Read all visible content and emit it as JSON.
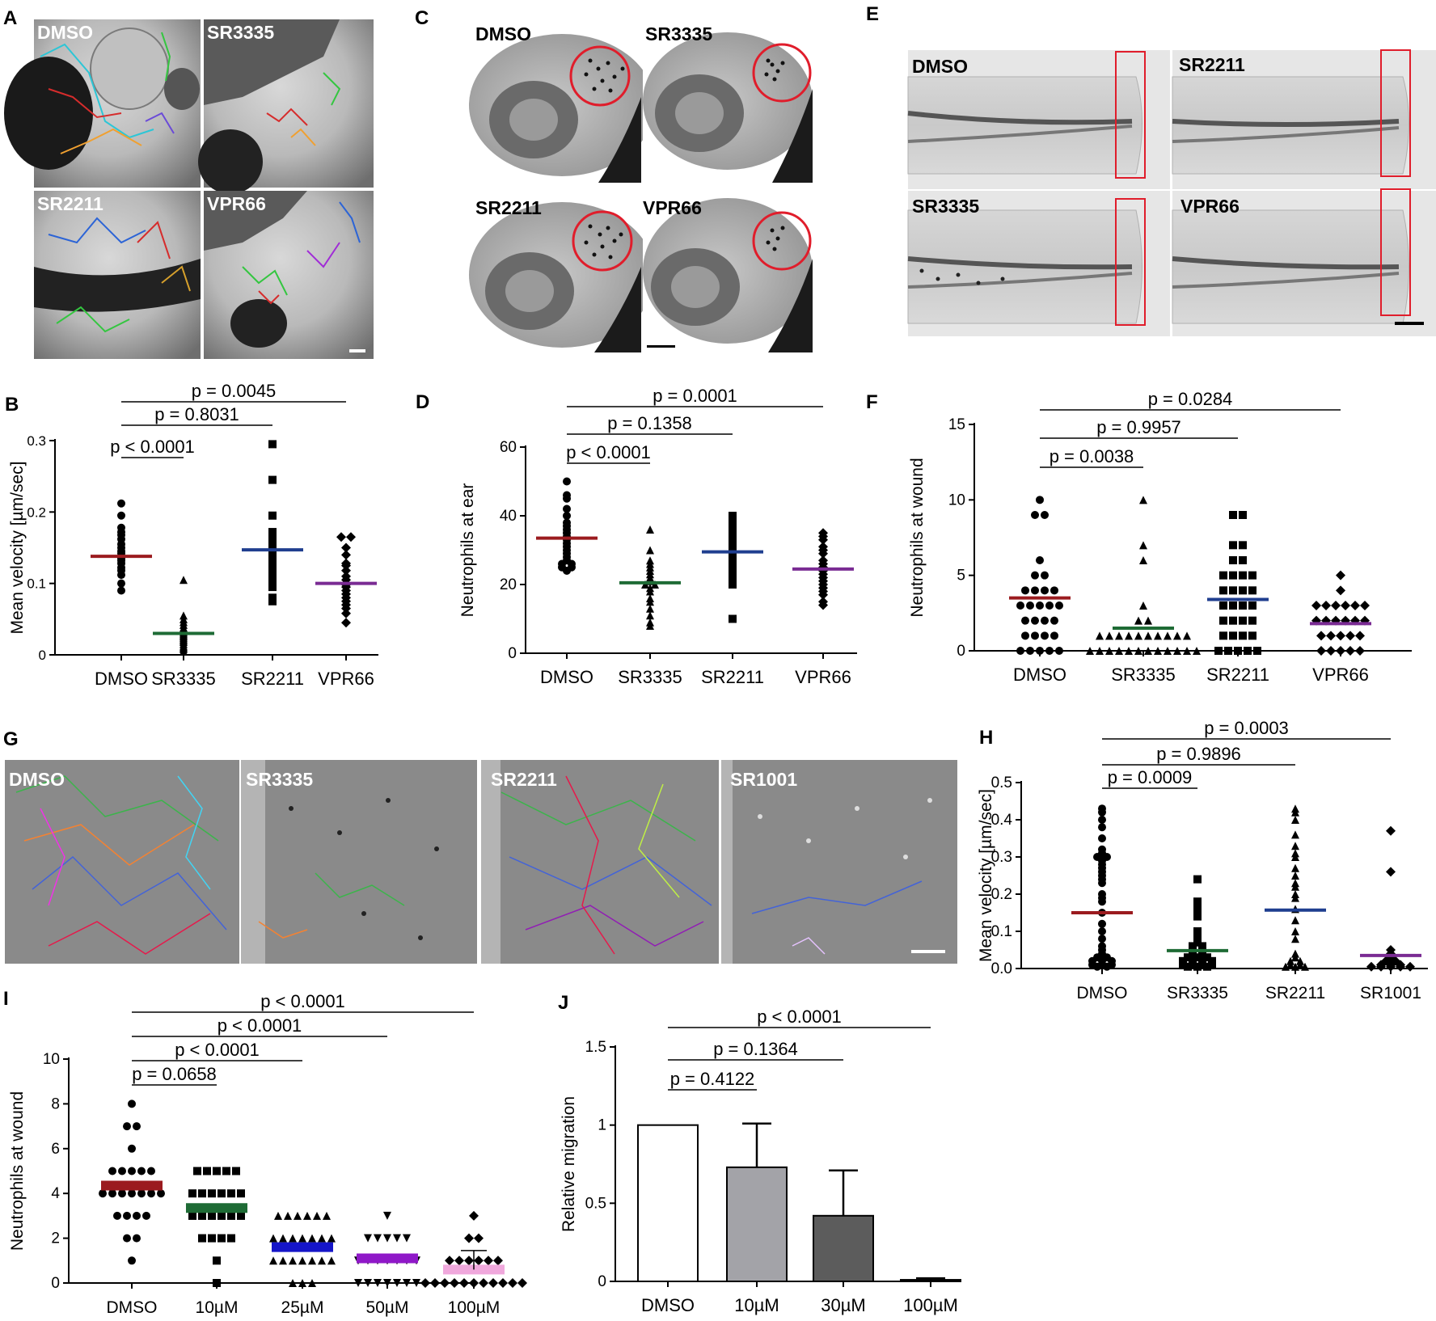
{
  "colors": {
    "dmso": "#9b1b1f",
    "sr3335": "#1e6b35",
    "sr2211": "#1f3e8f",
    "vpr66": "#7a2b93",
    "sr1001": "#7a2b93",
    "i_25": "#1515c8",
    "i_50": "#8f18c8",
    "i_100": "#f0a8dc",
    "j_dmso_fill": "#ffffff",
    "j_10": "#a3a3a8",
    "j_30": "#5c5c5c",
    "j_100": "#333333",
    "roi_red": "#e01d2b"
  },
  "panels": {
    "A": {
      "letter": "A",
      "images": [
        {
          "label": "DMSO",
          "name": "image-a-dmso"
        },
        {
          "label": "SR3335",
          "name": "image-a-sr3335"
        },
        {
          "label": "SR2211",
          "name": "image-a-sr2211"
        },
        {
          "label": "VPR66",
          "name": "image-a-vpr66"
        }
      ]
    },
    "C": {
      "letter": "C",
      "images": [
        {
          "label": "DMSO",
          "name": "image-c-dmso"
        },
        {
          "label": "SR3335",
          "name": "image-c-sr3335"
        },
        {
          "label": "SR2211",
          "name": "image-c-sr2211"
        },
        {
          "label": "VPR66",
          "name": "image-c-vpr66"
        }
      ]
    },
    "E": {
      "letter": "E",
      "images": [
        {
          "label": "DMSO",
          "name": "image-e-dmso"
        },
        {
          "label": "SR2211",
          "name": "image-e-sr2211"
        },
        {
          "label": "SR3335",
          "name": "image-e-sr3335"
        },
        {
          "label": "VPR66",
          "name": "image-e-vpr66"
        }
      ]
    },
    "G": {
      "letter": "G",
      "images": [
        {
          "label": "DMSO",
          "name": "image-g-dmso"
        },
        {
          "label": "SR3335",
          "name": "image-g-sr3335"
        },
        {
          "label": "SR2211",
          "name": "image-g-sr2211"
        },
        {
          "label": "SR1001",
          "name": "image-g-sr1001"
        }
      ]
    }
  },
  "chart_data": [
    {
      "id": "B",
      "letter": "B",
      "type": "scatter",
      "ylabel": "Mean velocity [µm/sec]",
      "ylim": [
        0,
        0.3
      ],
      "yticks": [
        "0",
        "0.1",
        "0.2",
        "0.3"
      ],
      "categories": [
        "DMSO",
        "SR3335",
        "SR2211",
        "VPR66"
      ],
      "groups": [
        {
          "name": "DMSO",
          "marker": "circle",
          "mean": 0.138,
          "color": "dmso",
          "values": [
            0.212,
            0.195,
            0.178,
            0.172,
            0.168,
            0.162,
            0.155,
            0.15,
            0.145,
            0.142,
            0.138,
            0.135,
            0.132,
            0.128,
            0.122,
            0.118,
            0.112,
            0.1,
            0.09
          ]
        },
        {
          "name": "SR3335",
          "marker": "triangle",
          "mean": 0.03,
          "color": "sr3335",
          "values": [
            0.105,
            0.055,
            0.05,
            0.046,
            0.042,
            0.038,
            0.035,
            0.032,
            0.03,
            0.028,
            0.026,
            0.024,
            0.022,
            0.02,
            0.018,
            0.015,
            0.012,
            0.01,
            0.008,
            0.005
          ]
        },
        {
          "name": "SR2211",
          "marker": "square",
          "mean": 0.147,
          "color": "sr2211",
          "values": [
            0.295,
            0.245,
            0.195,
            0.172,
            0.17,
            0.168,
            0.162,
            0.158,
            0.155,
            0.148,
            0.145,
            0.14,
            0.135,
            0.128,
            0.12,
            0.115,
            0.11,
            0.1,
            0.095,
            0.08,
            0.075
          ]
        },
        {
          "name": "VPR66",
          "marker": "diamond",
          "mean": 0.1,
          "color": "vpr66",
          "values": [
            0.165,
            0.165,
            0.15,
            0.14,
            0.128,
            0.125,
            0.118,
            0.11,
            0.105,
            0.1,
            0.098,
            0.095,
            0.09,
            0.085,
            0.08,
            0.075,
            0.07,
            0.065,
            0.058,
            0.045
          ]
        }
      ],
      "comparisons": [
        {
          "label": "p < 0.0001",
          "from": 0,
          "to": 1
        },
        {
          "label": "p = 0.8031",
          "from": 0,
          "to": 2
        },
        {
          "label": "p = 0.0045",
          "from": 0,
          "to": 3
        }
      ]
    },
    {
      "id": "D",
      "letter": "D",
      "type": "scatter",
      "ylabel": "Neutrophils at ear",
      "ylim": [
        0,
        60
      ],
      "yticks": [
        "0",
        "20",
        "40",
        "60"
      ],
      "categories": [
        "DMSO",
        "SR3335",
        "SR2211",
        "VPR66"
      ],
      "groups": [
        {
          "name": "DMSO",
          "marker": "circle",
          "mean": 33.5,
          "color": "dmso",
          "values": [
            50,
            46,
            45,
            42,
            40,
            38,
            37,
            36,
            35,
            34,
            33,
            32,
            31,
            30,
            29,
            28,
            27,
            26,
            26,
            25,
            25,
            24
          ]
        },
        {
          "name": "SR3335",
          "marker": "triangle",
          "mean": 20.5,
          "color": "sr3335",
          "values": [
            36,
            30,
            27,
            26,
            25,
            24,
            23,
            22,
            21,
            20,
            20,
            19,
            18,
            16,
            15,
            13,
            11,
            9,
            8
          ]
        },
        {
          "name": "SR2211",
          "marker": "square",
          "mean": 29.5,
          "color": "sr2211",
          "values": [
            40,
            39,
            38,
            37,
            36,
            35,
            34,
            33,
            32,
            31,
            30,
            29,
            28,
            27,
            26,
            25,
            24,
            22,
            20,
            10
          ]
        },
        {
          "name": "VPR66",
          "marker": "diamond",
          "mean": 24.5,
          "color": "vpr66",
          "values": [
            35,
            34,
            33,
            31,
            30,
            29,
            27,
            26,
            25,
            24,
            23,
            22,
            21,
            20,
            19,
            18,
            17,
            15,
            14
          ]
        }
      ],
      "comparisons": [
        {
          "label": "p < 0.0001",
          "from": 0,
          "to": 1
        },
        {
          "label": "p = 0.1358",
          "from": 0,
          "to": 2
        },
        {
          "label": "p = 0.0001",
          "from": 0,
          "to": 3
        }
      ]
    },
    {
      "id": "F",
      "letter": "F",
      "type": "scatter",
      "ylabel": "Neutrophils at wound",
      "ylim": [
        0,
        15
      ],
      "yticks": [
        "0",
        "5",
        "10",
        "15"
      ],
      "categories": [
        "DMSO",
        "SR3335",
        "SR2211",
        "VPR66"
      ],
      "groups": [
        {
          "name": "DMSO",
          "marker": "circle",
          "mean": 3.5,
          "color": "dmso",
          "values": [
            10,
            9,
            9,
            6,
            5,
            5,
            4,
            4,
            4,
            4,
            3,
            3,
            3,
            3,
            3,
            2,
            2,
            2,
            2,
            1,
            1,
            1,
            1,
            0,
            0,
            0,
            0,
            0
          ]
        },
        {
          "name": "SR3335",
          "marker": "triangle",
          "mean": 1.5,
          "color": "sr3335",
          "values": [
            10,
            7,
            6,
            3,
            2,
            2,
            1,
            1,
            1,
            1,
            1,
            1,
            1,
            1,
            1,
            1,
            0,
            0,
            0,
            0,
            0,
            0,
            0,
            0,
            0,
            0,
            0,
            0
          ]
        },
        {
          "name": "SR2211",
          "marker": "square",
          "mean": 3.4,
          "color": "sr2211",
          "values": [
            9,
            9,
            7,
            7,
            6,
            6,
            5,
            5,
            5,
            5,
            4,
            4,
            4,
            4,
            3,
            3,
            3,
            3,
            2,
            2,
            2,
            2,
            1,
            1,
            1,
            1,
            0,
            0,
            0,
            0,
            0
          ]
        },
        {
          "name": "VPR66",
          "marker": "diamond",
          "mean": 1.8,
          "color": "vpr66",
          "values": [
            5,
            4,
            3,
            3,
            3,
            3,
            3,
            3,
            2,
            2,
            2,
            2,
            2,
            2,
            1,
            1,
            1,
            1,
            1,
            0,
            0,
            0,
            0,
            0
          ]
        }
      ],
      "comparisons": [
        {
          "label": "p = 0.0038",
          "from": 0,
          "to": 1
        },
        {
          "label": "p = 0.9957",
          "from": 0,
          "to": 2
        },
        {
          "label": "p = 0.0284",
          "from": 0,
          "to": 3
        }
      ]
    },
    {
      "id": "H",
      "letter": "H",
      "type": "scatter",
      "ylabel": "Mean velocity [µm/sec]",
      "ylim": [
        0,
        0.5
      ],
      "yticks": [
        "0.0",
        "0.1",
        "0.2",
        "0.3",
        "0.4",
        "0.5"
      ],
      "categories": [
        "DMSO",
        "SR3335",
        "SR2211",
        "SR1001"
      ],
      "groups": [
        {
          "name": "DMSO",
          "marker": "circle",
          "mean": 0.15,
          "color": "dmso",
          "values": [
            0.43,
            0.42,
            0.4,
            0.38,
            0.35,
            0.32,
            0.31,
            0.3,
            0.3,
            0.29,
            0.28,
            0.27,
            0.26,
            0.25,
            0.24,
            0.23,
            0.2,
            0.19,
            0.18,
            0.15,
            0.12,
            0.1,
            0.08,
            0.06,
            0.05,
            0.04,
            0.03,
            0.03,
            0.02,
            0.02,
            0.02,
            0.01,
            0.01,
            0.01,
            0.005,
            0.005
          ]
        },
        {
          "name": "SR3335",
          "marker": "square",
          "mean": 0.048,
          "color": "sr3335",
          "values": [
            0.24,
            0.18,
            0.16,
            0.14,
            0.1,
            0.09,
            0.08,
            0.07,
            0.06,
            0.06,
            0.05,
            0.05,
            0.04,
            0.04,
            0.03,
            0.03,
            0.03,
            0.02,
            0.02,
            0.02,
            0.02,
            0.01,
            0.01,
            0.01,
            0.01,
            0.005,
            0.005,
            0.005
          ]
        },
        {
          "name": "SR2211",
          "marker": "triangle",
          "mean": 0.157,
          "color": "sr2211",
          "values": [
            0.43,
            0.42,
            0.4,
            0.36,
            0.33,
            0.31,
            0.3,
            0.27,
            0.25,
            0.23,
            0.22,
            0.2,
            0.19,
            0.16,
            0.13,
            0.1,
            0.08,
            0.04,
            0.03,
            0.02,
            0.02,
            0.01,
            0.01,
            0.005,
            0.005,
            0.005
          ]
        },
        {
          "name": "SR1001",
          "marker": "diamond",
          "mean": 0.035,
          "color": "sr1001",
          "values": [
            0.37,
            0.26,
            0.05,
            0.04,
            0.03,
            0.02,
            0.02,
            0.015,
            0.01,
            0.01,
            0.01,
            0.005,
            0.005,
            0.005,
            0.005,
            0.005
          ]
        }
      ],
      "comparisons": [
        {
          "label": "p = 0.0009",
          "from": 0,
          "to": 1
        },
        {
          "label": "p = 0.9896",
          "from": 0,
          "to": 2
        },
        {
          "label": "p = 0.0003",
          "from": 0,
          "to": 3
        }
      ]
    },
    {
      "id": "I",
      "letter": "I",
      "type": "scatter",
      "ylabel": "Neutrophils at wound",
      "ylim": [
        0,
        10
      ],
      "yticks": [
        "0",
        "2",
        "4",
        "6",
        "8",
        "10"
      ],
      "categories": [
        "DMSO",
        "10µM",
        "25µM",
        "50µM",
        "100µM"
      ],
      "groups": [
        {
          "name": "DMSO",
          "marker": "circle",
          "mean": 4.35,
          "color": "dmso",
          "values": [
            8,
            7,
            7,
            6,
            5,
            5,
            5,
            5,
            5,
            4,
            4,
            4,
            4,
            4,
            4,
            4,
            3,
            3,
            3,
            3,
            2,
            2,
            1
          ]
        },
        {
          "name": "10µM",
          "marker": "square",
          "mean": 3.35,
          "color": "sr3335",
          "values": [
            5,
            5,
            5,
            5,
            5,
            4,
            4,
            4,
            4,
            4,
            4,
            3,
            3,
            3,
            3,
            3,
            3,
            2,
            2,
            2,
            2,
            1,
            0
          ]
        },
        {
          "name": "25µM",
          "marker": "triangle",
          "mean": 1.6,
          "color": "i_25",
          "values": [
            3,
            3,
            3,
            3,
            3,
            3,
            2,
            2,
            2,
            2,
            2,
            2,
            2,
            1,
            1,
            1,
            1,
            1,
            1,
            1,
            0,
            0,
            0
          ]
        },
        {
          "name": "50µM",
          "marker": "invtriangle",
          "mean": 1.1,
          "color": "i_50",
          "values": [
            3,
            2,
            2,
            2,
            2,
            2,
            1,
            1,
            1,
            1,
            1,
            1,
            1,
            0,
            0,
            0,
            0,
            0,
            0,
            0
          ]
        },
        {
          "name": "100µM",
          "marker": "diamond",
          "mean": 0.6,
          "color": "i_100",
          "sem": 0.85,
          "values": [
            3,
            2,
            2,
            1,
            1,
            1,
            1,
            1,
            1,
            0,
            0,
            0,
            0,
            0,
            0,
            0,
            0,
            0,
            0,
            0
          ]
        }
      ],
      "comparisons": [
        {
          "label": "p = 0.0658",
          "from": 0,
          "to": 1
        },
        {
          "label": "p < 0.0001",
          "from": 0,
          "to": 2
        },
        {
          "label": "p < 0.0001",
          "from": 0,
          "to": 3
        },
        {
          "label": "p < 0.0001",
          "from": 0,
          "to": 4
        }
      ]
    },
    {
      "id": "J",
      "letter": "J",
      "type": "bar",
      "ylabel": "Relative migration",
      "ylim": [
        0,
        1.5
      ],
      "yticks": [
        "0",
        "0.5",
        "1",
        "1.5"
      ],
      "categories": [
        "DMSO",
        "10µM",
        "30µM",
        "100µM"
      ],
      "values": [
        1.0,
        0.73,
        0.42,
        0.01
      ],
      "errors": [
        0,
        0.28,
        0.29,
        0.01
      ],
      "bar_colors": [
        "j_dmso_fill",
        "j_10",
        "j_30",
        "j_100"
      ],
      "comparisons": [
        {
          "label": "p = 0.4122",
          "from": 0,
          "to": 1
        },
        {
          "label": "p = 0.1364",
          "from": 0,
          "to": 2
        },
        {
          "label": "p < 0.0001",
          "from": 0,
          "to": 3
        }
      ]
    }
  ]
}
